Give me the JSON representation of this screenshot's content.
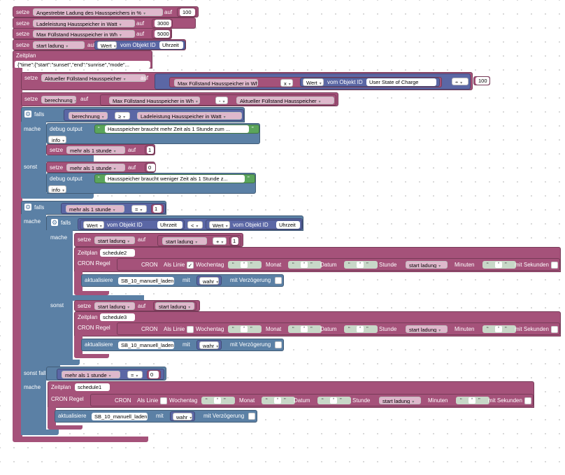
{
  "labels": {
    "setze": "setze",
    "auf": "auf",
    "zeitplan": "Zeitplan",
    "falls": "falls",
    "mache": "mache",
    "sonst": "sonst",
    "sonst_falls": "sonst falls",
    "debug_output": "debug output",
    "info": "info",
    "wert": "Wert",
    "vom_objekt_id": "vom Objekt ID",
    "cron": "CRON",
    "als_linie": "Als Linie",
    "wochentag": "Wochentag",
    "monat": "Monat",
    "datum": "Datum",
    "stunde": "Stunde",
    "minuten": "Minuten",
    "mit_sekunden": "mit Sekunden",
    "cron_regel": "CRON Regel",
    "aktualisiere": "aktualisiere",
    "mit": "mit",
    "wahr": "wahr",
    "mit_verzoegerung": "mit Verzögerung",
    "x": "x",
    "plus": "+",
    "minus": "-",
    "ge": "≥",
    "lt": "<",
    "eq": "=",
    "quote_open": "“",
    "quote_close": "”",
    "star": "*"
  },
  "variables": {
    "angestrebte": "Angestrebte Ladung des Hausspeichers in %",
    "ladeleistung": "Ladeleistung Hausspeicher in Watt",
    "max_fuellstand": "Max Füllstand Hausspeicher in Wh",
    "start_ladung": "start ladung",
    "aktueller_fuellstand": "Aktueller Füllstand Hausspeicher",
    "berechnung": "berechnung",
    "mehr_als": "mehr als 1 stunde"
  },
  "values": {
    "angestrebte": "100",
    "ladeleistung": "3000",
    "max_fuellstand": "5000",
    "divisor": "100",
    "mehr_true": "1",
    "mehr_false": "0",
    "add_one": "1",
    "cmp_one": "1",
    "cmp_zero": "0"
  },
  "objects": {
    "uhrzeit": "Uhrzeit",
    "user_state": "User State of Charge",
    "schedule_text": "{\"time\":{\"start\":\"sunset\",\"end\":\"sunrise\",\"mode\"...",
    "schedule1": "schedule1",
    "schedule2": "schedule2",
    "schedule3": "schedule3",
    "sb_manuell": "SB_10_manuell_laden"
  },
  "texts": {
    "mehr_zeit": "Hausspeicher braucht mehr Zeit als 1 Stunde zum ...",
    "weniger_zeit": "Hausspeicher braucht weniger Zeit als 1 Stunde z..."
  },
  "colors": {
    "variables": "#a5527a",
    "controls": "#5b80a5",
    "logic": "#5b67a5",
    "text": "#5ba55b"
  }
}
